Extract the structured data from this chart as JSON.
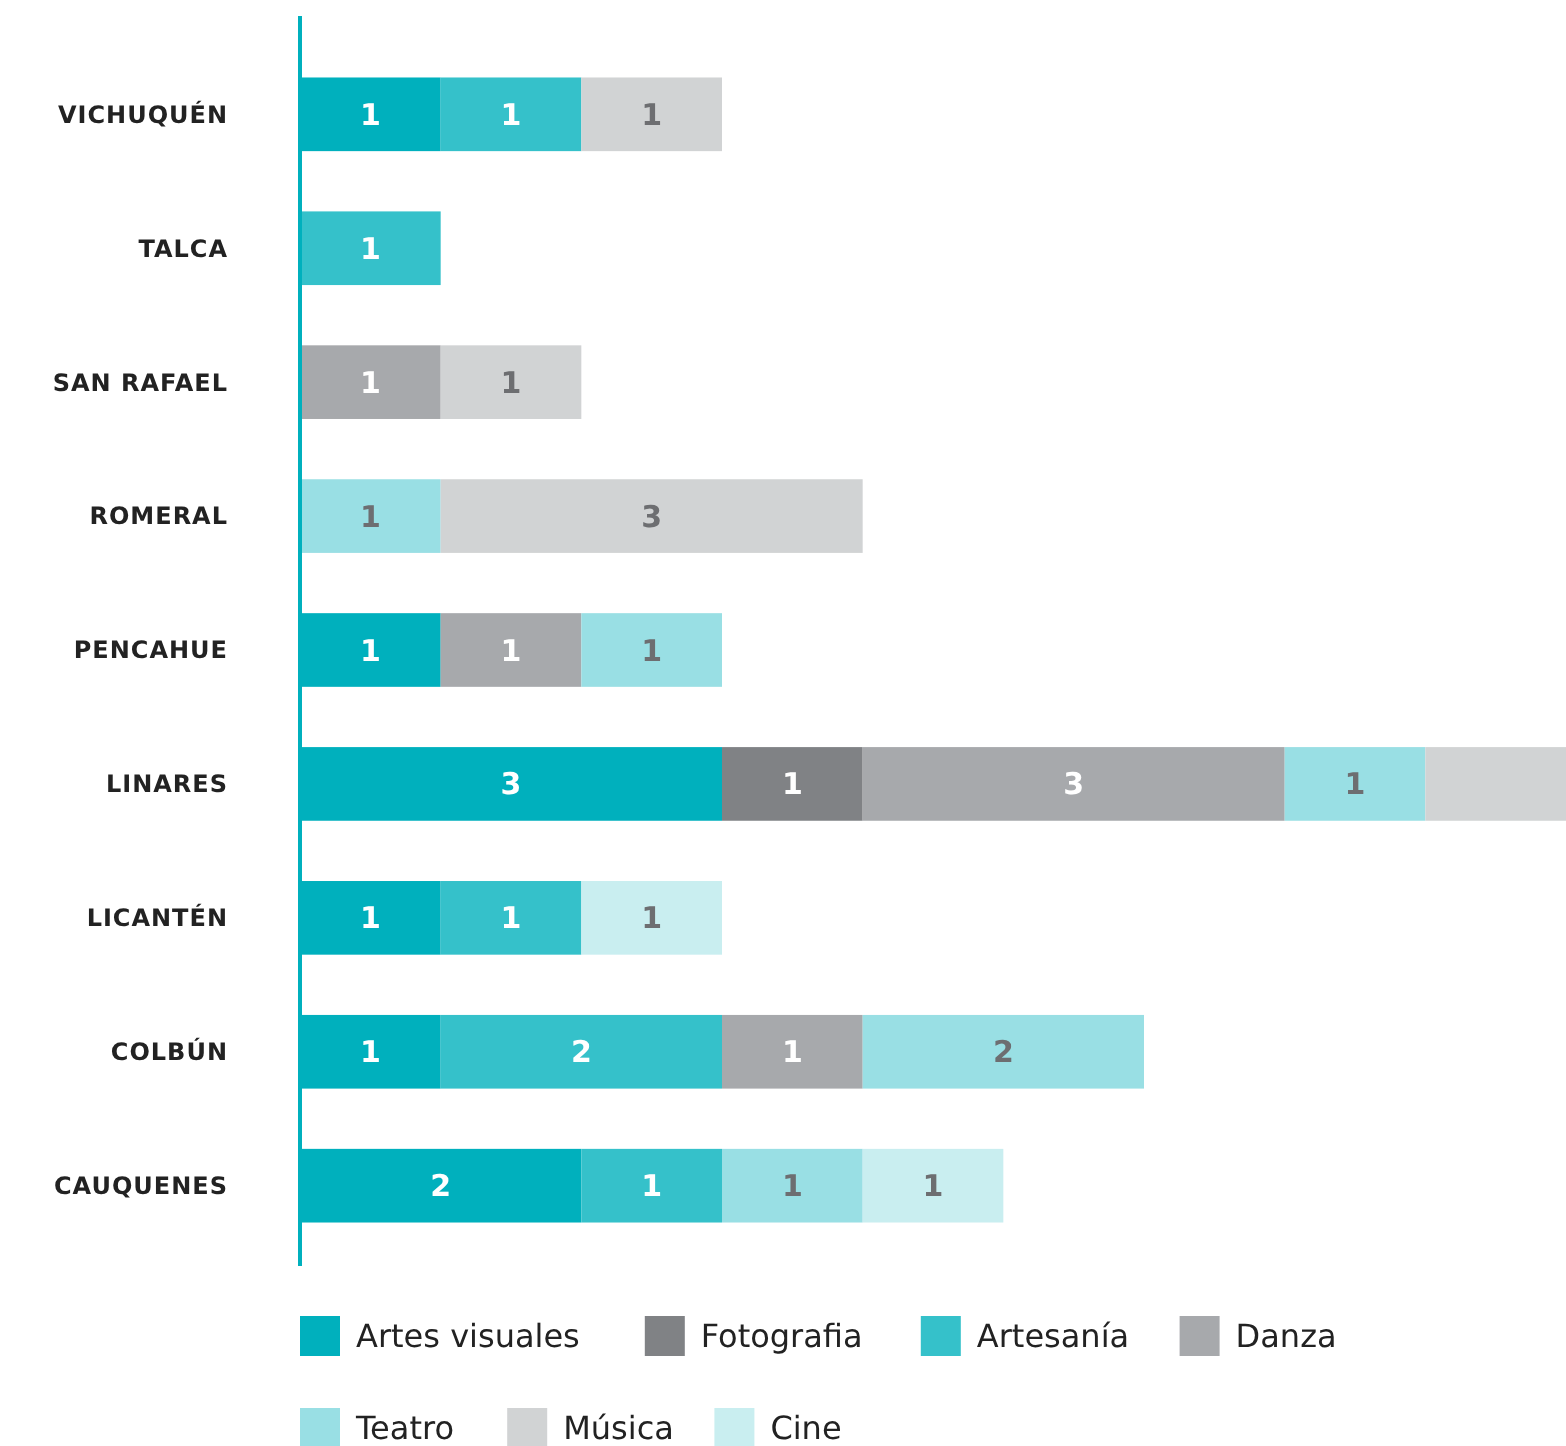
{
  "chart_data": {
    "type": "bar",
    "orientation": "horizontal",
    "stacked": true,
    "legend": "bottom",
    "categories": [
      "VICHUQUÉN",
      "TALCA",
      "SAN RAFAEL",
      "ROMERAL",
      "PENCAHUE",
      "LINARES",
      "LICANTÉN",
      "COLBÚN",
      "CAUQUENES"
    ],
    "series": [
      {
        "name": "Artes visuales",
        "color": "#00b0bd",
        "values": [
          1,
          null,
          null,
          null,
          1,
          3,
          1,
          1,
          2
        ],
        "value_labels": [
          "1",
          null,
          null,
          null,
          "1",
          "3",
          "1",
          "1",
          "2"
        ]
      },
      {
        "name": "Fotografia",
        "color": "#808285",
        "values": [
          null,
          null,
          null,
          null,
          null,
          1,
          null,
          null,
          null
        ],
        "value_labels": [
          null,
          null,
          null,
          null,
          null,
          "1",
          null,
          null,
          null
        ]
      },
      {
        "name": "Artesanía",
        "color": "#35c1ca",
        "values": [
          1,
          1,
          null,
          null,
          null,
          null,
          1,
          2,
          1
        ],
        "value_labels": [
          "1",
          "1",
          null,
          null,
          null,
          null,
          "1",
          "2",
          "1"
        ]
      },
      {
        "name": "Danza",
        "color": "#a7a9ac",
        "values": [
          null,
          null,
          1,
          null,
          1,
          3,
          null,
          1,
          null
        ],
        "value_labels": [
          null,
          null,
          "1",
          null,
          "1",
          "3",
          null,
          "1",
          null
        ]
      },
      {
        "name": "Teatro",
        "color": "#99dfe4",
        "values": [
          null,
          null,
          null,
          1,
          1,
          1,
          null,
          2,
          1
        ],
        "value_labels": [
          null,
          null,
          null,
          "1",
          "1",
          "1",
          null,
          "2",
          "1"
        ]
      },
      {
        "name": "Música",
        "color": "#d1d3d4",
        "values": [
          1,
          null,
          1,
          3,
          null,
          1,
          null,
          null,
          null
        ],
        "value_labels": [
          "1",
          null,
          "1",
          "3",
          null,
          null,
          null,
          null,
          null
        ]
      },
      {
        "name": "Cine",
        "color": "#c9eef0",
        "values": [
          null,
          null,
          null,
          null,
          null,
          null,
          1,
          null,
          1
        ],
        "value_labels": [
          null,
          null,
          null,
          null,
          null,
          null,
          "1",
          null,
          "1"
        ]
      }
    ]
  }
}
